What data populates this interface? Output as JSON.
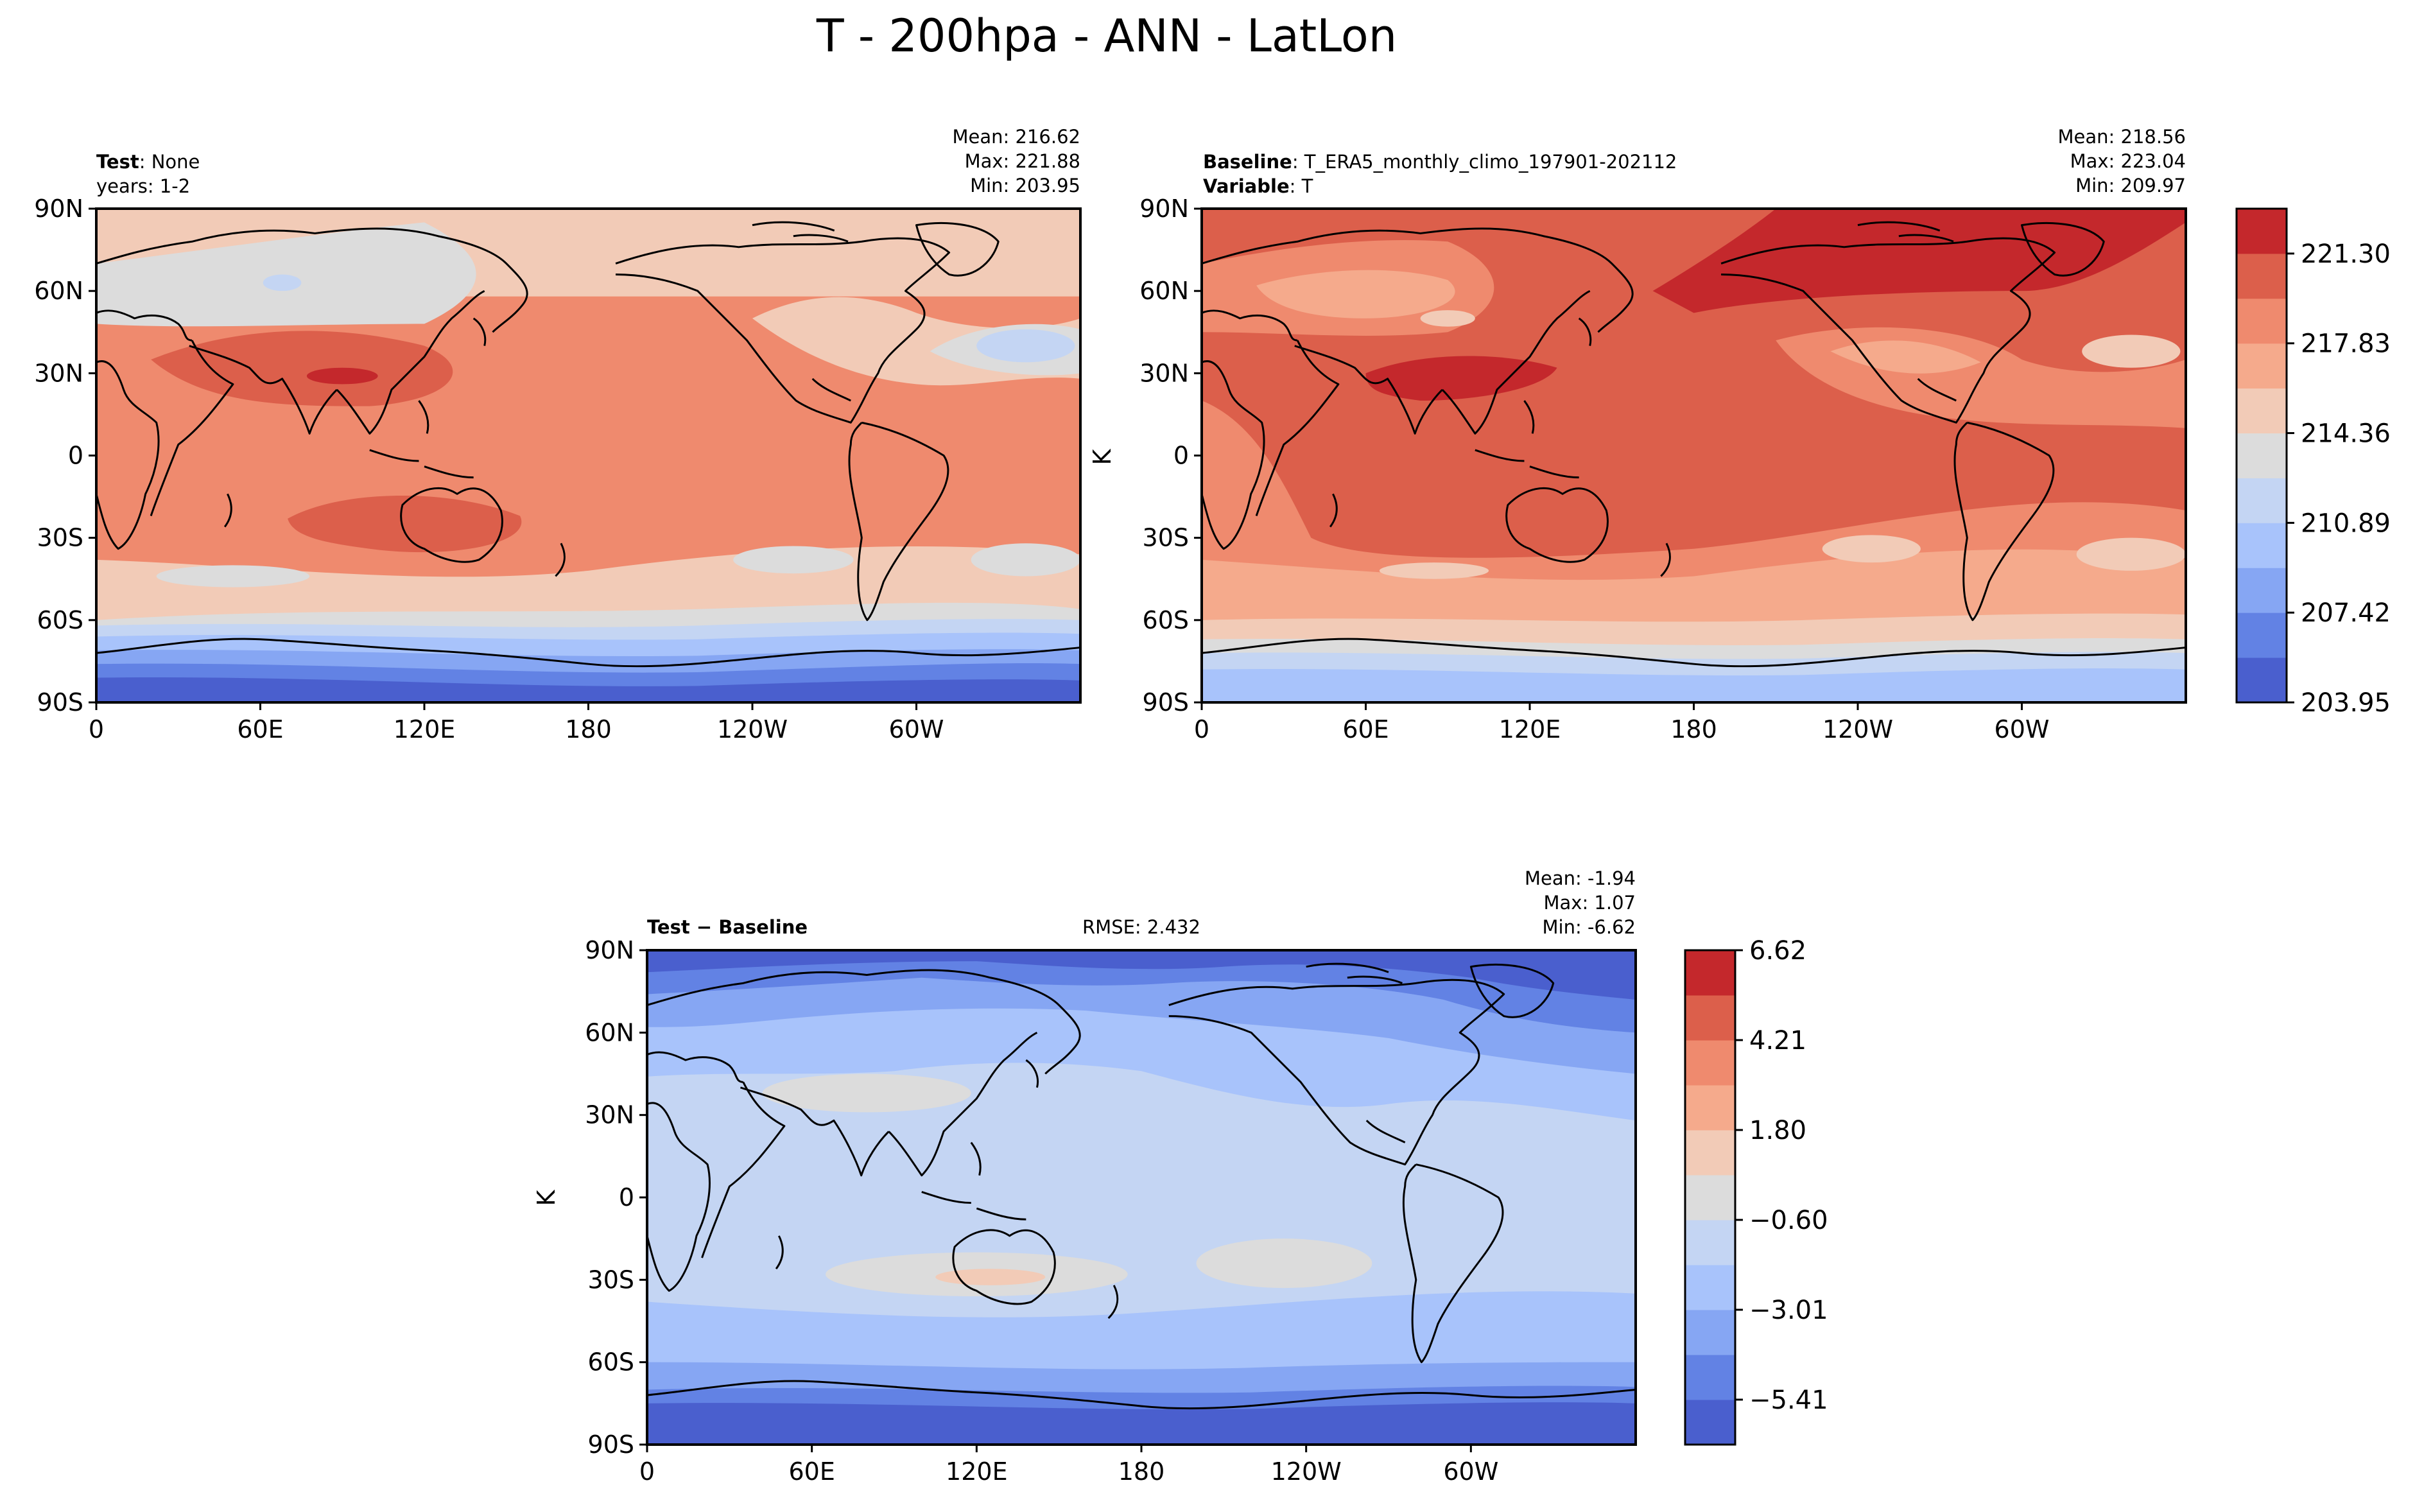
{
  "figure": {
    "title": "T - 200hpa - ANN - LatLon"
  },
  "axes": {
    "lat_ticks": [
      "90N",
      "60N",
      "30N",
      "0",
      "30S",
      "60S",
      "90S"
    ],
    "lon_ticks": [
      "0",
      "60E",
      "120E",
      "180",
      "120W",
      "60W"
    ]
  },
  "test_panel": {
    "left_label": "Test",
    "left_value": ": None",
    "years": "years: 1-2",
    "stats": [
      "Mean: 216.62",
      "Max: 221.88",
      "Min: 203.95"
    ]
  },
  "baseline_panel": {
    "label1": "Baseline",
    "value1": ": T_ERA5_monthly_climo_197901-202112",
    "label2": "Variable",
    "value2": ": T",
    "ylabel": "K",
    "stats": [
      "Mean: 218.56",
      "Max: 223.04",
      "Min: 209.97"
    ]
  },
  "diff_panel": {
    "label": "Test − Baseline",
    "rmse": "RMSE: 2.432",
    "ylabel": "K",
    "stats": [
      "Mean: -1.94",
      "Max:  1.07",
      "Min: -6.62"
    ]
  },
  "colorbar_main": {
    "ticks": [
      "221.30",
      "217.83",
      "214.36",
      "210.89",
      "207.42",
      "203.95"
    ]
  },
  "colorbar_diff": {
    "ticks": [
      "6.62",
      "4.21",
      "1.80",
      "−0.60",
      "−3.01",
      "−5.41"
    ]
  },
  "colors": {
    "levels": [
      "#4a5fce",
      "#6282e4",
      "#86a6f3",
      "#a8c3fb",
      "#c4d5f3",
      "#dcdcdc",
      "#f2cbb7",
      "#f5aa8c",
      "#ef8a6e",
      "#dc5f4b",
      "#c4282c"
    ],
    "coast": "#000000"
  }
}
